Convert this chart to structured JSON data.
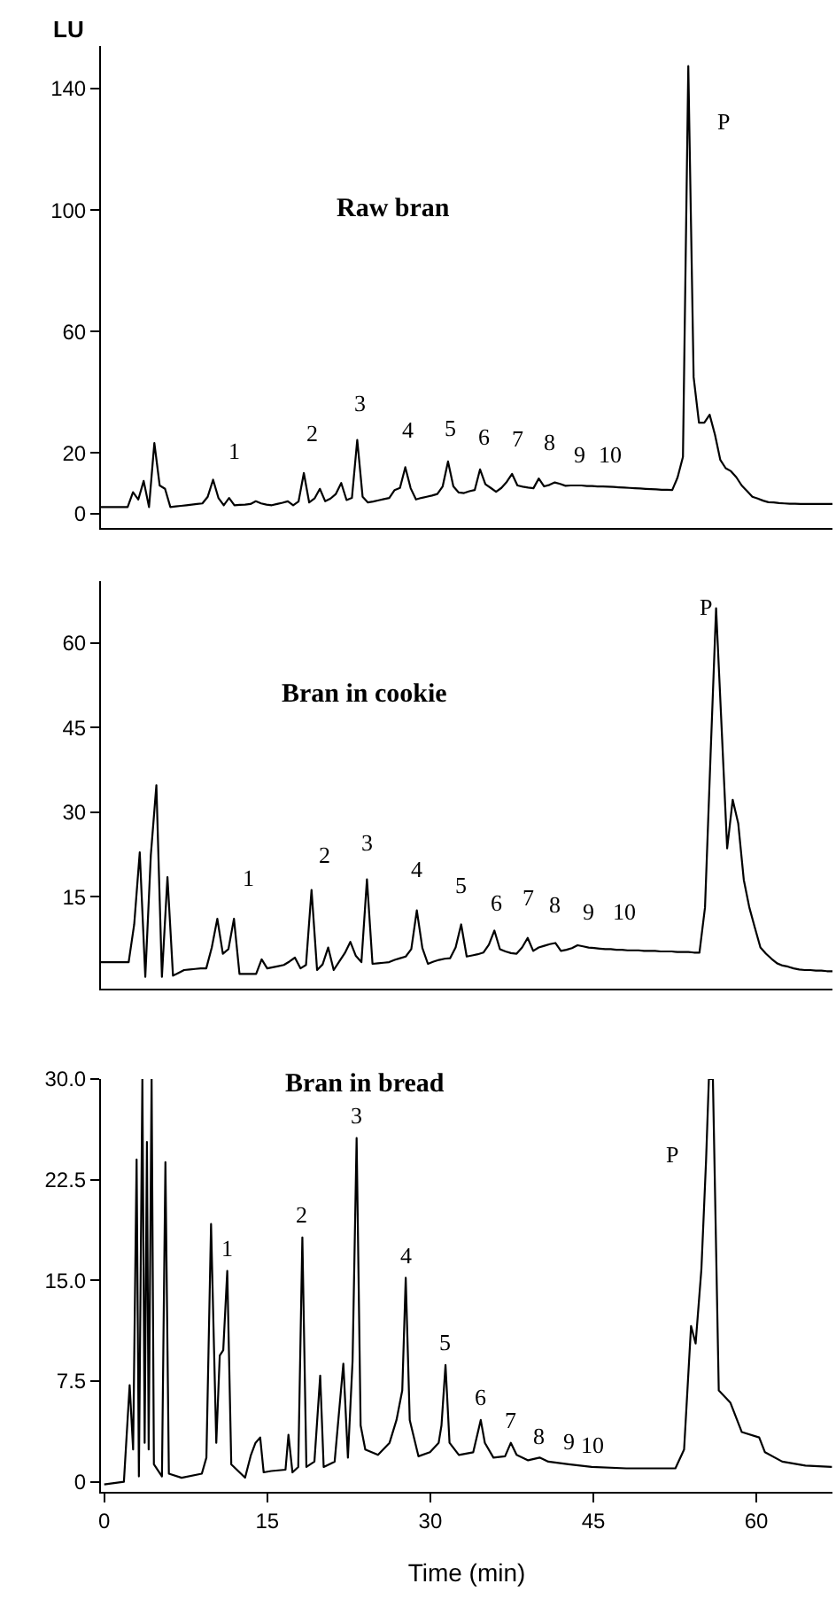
{
  "chart_data": [
    {
      "type": "line",
      "title": "Raw bran",
      "ylabel": "LU",
      "color": "#000000",
      "tick_labels": "y",
      "ylim": [
        -4.7,
        154
      ],
      "yticks": [
        0,
        20,
        60,
        100,
        140
      ],
      "categories": [
        null,
        null,
        null,
        null,
        null,
        null,
        null,
        null,
        null,
        null,
        null,
        null,
        null,
        null,
        null,
        null,
        null,
        null,
        null,
        null,
        null,
        null,
        null,
        null,
        null,
        null,
        null,
        null,
        null,
        null,
        null,
        null,
        null,
        null,
        null,
        null,
        null,
        null,
        null,
        null,
        null,
        null,
        null,
        null,
        null,
        null,
        null,
        null,
        null,
        null,
        null,
        null,
        null,
        null,
        null,
        null,
        null,
        null,
        null,
        null,
        null,
        null,
        null,
        null,
        null,
        null,
        null,
        null,
        null,
        null,
        null,
        null,
        null,
        null,
        null,
        null,
        null,
        null,
        null,
        null,
        null,
        null,
        null,
        null,
        null,
        null,
        null,
        null,
        null,
        null,
        null,
        null,
        null,
        null,
        null,
        null,
        null,
        null,
        null,
        null,
        null,
        null,
        null,
        null,
        null,
        null,
        null,
        null,
        null,
        null,
        null,
        null,
        null,
        null,
        null,
        null,
        null,
        null,
        null,
        null,
        null,
        null,
        null,
        null,
        null,
        null,
        null,
        null,
        null,
        null,
        null,
        null,
        null,
        null,
        null,
        null,
        null,
        null
      ],
      "values": [
        2.2,
        2.2,
        2.2,
        2.2,
        2.2,
        2.2,
        7.1,
        4.7,
        10.8,
        2.2,
        23.3,
        9.3,
        8.2,
        2.2,
        2.4,
        2.6,
        2.8,
        3,
        3.2,
        3.4,
        5.6,
        11.2,
        5.2,
        2.8,
        5.2,
        2.8,
        2.9,
        3,
        3.2,
        4.1,
        3.4,
        3,
        2.8,
        3.2,
        3.6,
        4.1,
        2.8,
        4,
        13.4,
        3.7,
        5,
        8.2,
        4.1,
        5,
        6.5,
        10.1,
        4.5,
        5.2,
        24.3,
        5.6,
        3.7,
        4,
        4.4,
        4.8,
        5.2,
        7.8,
        8.5,
        15.3,
        8.4,
        4.7,
        5.2,
        5.6,
        6,
        6.5,
        9,
        17.2,
        9,
        7,
        6.8,
        7.4,
        7.8,
        14.6,
        9.7,
        8.5,
        7.2,
        8.5,
        10.5,
        13.1,
        9.3,
        8.9,
        8.6,
        8.4,
        11.6,
        9,
        9.5,
        10.3,
        9.8,
        9.2,
        9.3,
        9.3,
        9.3,
        9.1,
        9.1,
        9,
        9,
        8.9,
        8.8,
        8.7,
        8.6,
        8.5,
        8.4,
        8.3,
        8.2,
        8.1,
        8,
        7.9,
        7.9,
        7.8,
        12,
        18.7,
        147.4,
        45,
        30,
        30,
        32.6,
        26,
        17.7,
        15,
        14,
        12,
        9.3,
        7.5,
        5.6,
        5,
        4.3,
        3.8,
        3.7,
        3.5,
        3.4,
        3.3,
        3.3,
        3.2,
        3.2,
        3.2,
        3.2,
        3.2,
        3.2,
        3.2
      ],
      "annotations": [
        "1",
        "2",
        "3",
        "4",
        "5",
        "6",
        "7",
        "8",
        "9",
        "10",
        "P"
      ]
    },
    {
      "type": "line",
      "title": "Bran in cookie",
      "color": "#000000",
      "tick_labels": "y",
      "ylim": [
        -1.3,
        71
      ],
      "yticks": [
        15,
        30,
        45,
        60
      ],
      "categories": [
        null,
        null,
        null,
        null,
        null,
        null,
        null,
        null,
        null,
        null,
        null,
        null,
        null,
        null,
        null,
        null,
        null,
        null,
        null,
        null,
        null,
        null,
        null,
        null,
        null,
        null,
        null,
        null,
        null,
        null,
        null,
        null,
        null,
        null,
        null,
        null,
        null,
        null,
        null,
        null,
        null,
        null,
        null,
        null,
        null,
        null,
        null,
        null,
        null,
        null,
        null,
        null,
        null,
        null,
        null,
        null,
        null,
        null,
        null,
        null,
        null,
        null,
        null,
        null,
        null,
        null,
        null,
        null,
        null,
        null,
        null,
        null,
        null,
        null,
        null,
        null,
        null,
        null,
        null,
        null,
        null,
        null,
        null,
        null,
        null,
        null,
        null,
        null,
        null,
        null,
        null,
        null,
        null,
        null,
        null,
        null,
        null,
        null,
        null,
        null,
        null,
        null,
        null,
        null,
        null,
        null,
        null,
        null,
        null,
        null,
        null,
        null,
        null,
        null,
        null,
        null,
        null,
        null,
        null,
        null,
        null,
        null,
        null,
        null,
        null,
        null,
        null,
        null,
        null,
        null,
        null,
        null,
        null
      ],
      "values": [
        3.4,
        3.4,
        3.4,
        3.4,
        3.4,
        3.4,
        10.1,
        22.9,
        0.8,
        22.4,
        34.8,
        0.8,
        18.5,
        1,
        1.5,
        2,
        2.1,
        2.2,
        2.3,
        2.3,
        6,
        11.1,
        4.9,
        5.7,
        11.1,
        1.3,
        1.3,
        1.3,
        1.3,
        3.9,
        2.3,
        2.5,
        2.7,
        2.9,
        3.5,
        4.2,
        2.3,
        2.9,
        16.2,
        2,
        3,
        6,
        2,
        3.5,
        5,
        7,
        4.5,
        3.4,
        18.1,
        3.1,
        3.2,
        3.3,
        3.4,
        3.8,
        4.1,
        4.4,
        5.7,
        12.6,
        5.9,
        3.1,
        3.5,
        3.8,
        4,
        4.1,
        6,
        10.1,
        4.4,
        4.6,
        4.8,
        5.1,
        6.5,
        9,
        5.7,
        5.3,
        5,
        4.9,
        6,
        7.7,
        5.4,
        6,
        6.3,
        6.6,
        6.8,
        5.4,
        5.6,
        5.9,
        6.4,
        6.2,
        6,
        5.9,
        5.8,
        5.7,
        5.7,
        5.6,
        5.6,
        5.5,
        5.5,
        5.5,
        5.4,
        5.4,
        5.4,
        5.3,
        5.3,
        5.3,
        5.2,
        5.2,
        5.2,
        5.1,
        5.1,
        13.1,
        40,
        66.2,
        45,
        23.6,
        32.2,
        28,
        18,
        13.1,
        9.5,
        6,
        4.9,
        4,
        3.2,
        2.8,
        2.6,
        2.3,
        2.1,
        2,
        2,
        1.9,
        1.9,
        1.8,
        1.8
      ],
      "annotations": [
        "1",
        "2",
        "3",
        "4",
        "5",
        "6",
        "7",
        "8",
        "9",
        "10",
        "P"
      ]
    },
    {
      "type": "line",
      "title": "Bran in bread",
      "xlabel": "Time (min)",
      "color": "#000000",
      "xlim": [
        -0.3,
        67
      ],
      "xticks": [
        0,
        15,
        30,
        45,
        60
      ],
      "ylim": [
        -0.75,
        30
      ],
      "yticks": [
        0,
        {
          "value": 7.5,
          "label": "7.5"
        },
        {
          "value": 15,
          "label": "15.0"
        },
        {
          "value": 22.5,
          "label": "22.5"
        },
        {
          "value": 30,
          "label": "30.0"
        }
      ],
      "x": [
        0,
        1.81,
        2.34,
        2.66,
        2.98,
        3.19,
        3.51,
        3.72,
        3.93,
        4.09,
        4.36,
        4.57,
        5.31,
        5.63,
        5.95,
        7.12,
        8.98,
        9.4,
        9.83,
        10.31,
        10.63,
        10.95,
        11.32,
        11.69,
        12.96,
        13.5,
        13.92,
        14.35,
        14.67,
        15.36,
        16.68,
        16.95,
        17.32,
        17.85,
        18.23,
        18.6,
        19.34,
        19.87,
        20.19,
        21.2,
        22,
        22.42,
        22.85,
        23.22,
        23.59,
        24.02,
        25.19,
        26.25,
        26.89,
        27.42,
        27.74,
        28.11,
        28.91,
        29.97,
        30.77,
        31.03,
        31.4,
        31.77,
        32.63,
        33.95,
        34.64,
        35.02,
        35.81,
        36.88,
        37.41,
        37.94,
        39,
        40.06,
        40.86,
        42.72,
        44.85,
        48.03,
        52.55,
        53.35,
        53.99,
        54.41,
        54.94,
        55.37,
        55.63,
        56,
        56.54,
        57.6,
        58.66,
        60.26,
        60.79,
        62.38,
        64.51,
        66.95
      ],
      "values": [
        -0.2,
        0,
        7.2,
        2.4,
        24,
        0.4,
        30,
        2.9,
        25.3,
        2.4,
        30,
        1.3,
        0.4,
        23.8,
        0.6,
        0.3,
        0.6,
        1.8,
        19.2,
        2.9,
        9.4,
        9.8,
        15.7,
        1.3,
        0.3,
        2,
        2.9,
        3.3,
        0.7,
        0.8,
        0.9,
        3.5,
        0.7,
        1.1,
        18.2,
        1.1,
        1.5,
        7.9,
        1.1,
        1.5,
        8.8,
        1.8,
        9,
        25.6,
        4.2,
        2.4,
        2,
        2.9,
        4.6,
        6.8,
        15.2,
        4.6,
        1.9,
        2.2,
        2.9,
        4.2,
        8.7,
        2.9,
        2,
        2.2,
        4.6,
        2.9,
        1.8,
        1.9,
        2.9,
        2,
        1.6,
        1.8,
        1.5,
        1.3,
        1.1,
        1,
        1,
        2.4,
        11.6,
        10.3,
        15.8,
        23.9,
        30,
        30,
        6.8,
        5.9,
        3.7,
        3.3,
        2.2,
        1.5,
        1.2,
        1.1
      ],
      "annotations": [
        {
          "text": "1",
          "x": 11.32,
          "y": 15.7
        },
        {
          "text": "2",
          "x": 18.23,
          "y": 18.2
        },
        {
          "text": "3",
          "x": 23.22,
          "y": 25.6
        },
        {
          "text": "4",
          "x": 27.74,
          "y": 15.2
        },
        {
          "text": "5",
          "x": 31.4,
          "y": 8.7
        },
        {
          "text": "6",
          "x": 34.64,
          "y": 4.6
        },
        {
          "text": "7",
          "x": 37.41,
          "y": 2.9
        },
        {
          "text": "8",
          "x": 40.06,
          "y": 1.8
        },
        {
          "text": "9",
          "x": 42.72,
          "y": 1.3
        },
        {
          "text": "10",
          "x": 44.85,
          "y": 1.1
        },
        "P"
      ]
    }
  ]
}
